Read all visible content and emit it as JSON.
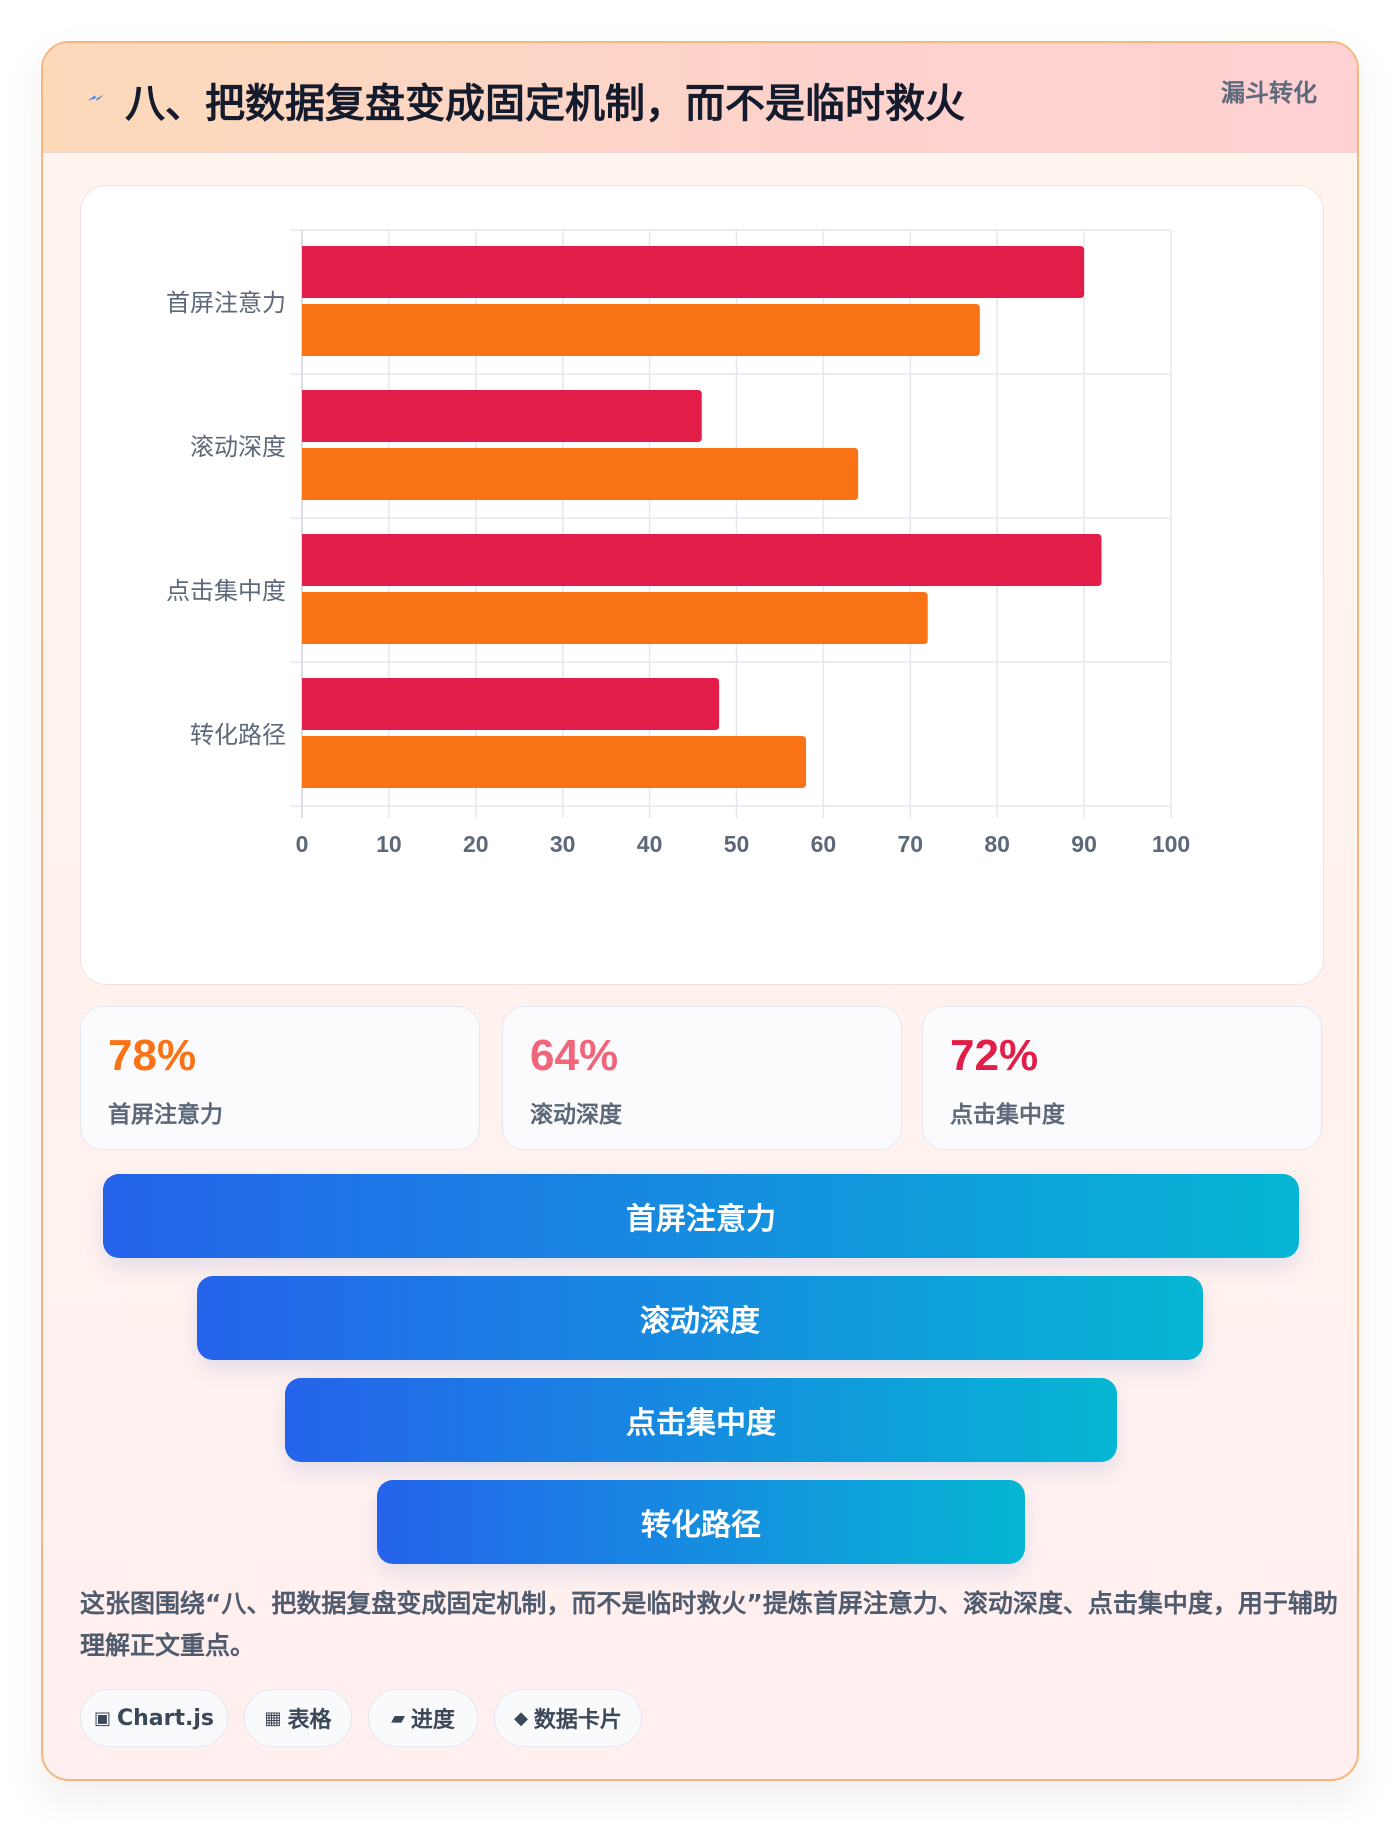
{
  "header": {
    "title": "八、把数据复盘变成固定机制，而不是临时救火",
    "tag": "漏斗转化"
  },
  "colors": {
    "series_red": "#e11d48",
    "series_orange": "#f97316",
    "stat_orange": "#f97316",
    "stat_pink": "#f0657a",
    "stat_red": "#e11d48"
  },
  "chart_data": {
    "type": "bar",
    "orientation": "horizontal",
    "categories": [
      "首屏注意力",
      "滚动深度",
      "点击集中度",
      "转化路径"
    ],
    "series": [
      {
        "values": [
          90,
          46,
          92,
          48
        ],
        "color": "#e11d48"
      },
      {
        "values": [
          78,
          64,
          72,
          58
        ],
        "color": "#f97316"
      }
    ],
    "xlim": [
      0,
      100
    ],
    "xticks": [
      0,
      10,
      20,
      30,
      40,
      50,
      60,
      70,
      80,
      90,
      100
    ],
    "grid": true,
    "legend": "none"
  },
  "stats": [
    {
      "value": "78%",
      "label": "首屏注意力",
      "color": "#f97316"
    },
    {
      "value": "64%",
      "label": "滚动深度",
      "color": "#f0657a"
    },
    {
      "value": "72%",
      "label": "点击集中度",
      "color": "#e11d48"
    }
  ],
  "funnel": [
    {
      "label": "首屏注意力"
    },
    {
      "label": "滚动深度"
    },
    {
      "label": "点击集中度"
    },
    {
      "label": "转化路径"
    }
  ],
  "description": "这张图围绕“八、把数据复盘变成固定机制，而不是临时救火”提炼首屏注意力、滚动深度、点击集中度，用于辅助理解正文重点。",
  "chips": [
    {
      "icon": "▣",
      "icon_name": "chart-icon",
      "label": "Chart.js"
    },
    {
      "icon": "▦",
      "icon_name": "table-icon",
      "label": "表格"
    },
    {
      "icon": "▰",
      "icon_name": "progress-icon",
      "label": "进度"
    },
    {
      "icon": "◆",
      "icon_name": "diamond-icon",
      "label": "数据卡片"
    }
  ]
}
